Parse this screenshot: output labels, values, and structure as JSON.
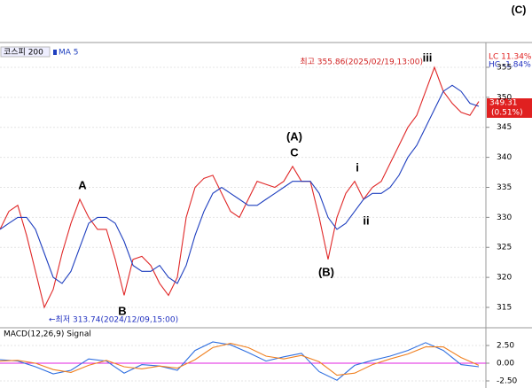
{
  "chart_data": [
    {
      "type": "line",
      "title": "코스피 200",
      "corner_label": "(C)",
      "categories": [
        null,
        null,
        null,
        null,
        null,
        null,
        null,
        null,
        null,
        null,
        null,
        null,
        null,
        null,
        null,
        null,
        null,
        null,
        null,
        null,
        null,
        null,
        null,
        null,
        null,
        null,
        null,
        null,
        null,
        null,
        null,
        null,
        null,
        null,
        null,
        null,
        null,
        null,
        null,
        null,
        null,
        null,
        null,
        null,
        null,
        null,
        null,
        null,
        null,
        null,
        null,
        null,
        null,
        null,
        null
      ],
      "series": [
        {
          "color": "#e02828",
          "values": [
            328,
            331,
            332,
            327,
            321,
            315,
            318,
            324,
            329,
            333,
            330,
            328,
            328,
            323,
            317,
            323,
            323.5,
            322,
            319,
            317,
            320,
            330,
            335,
            336.5,
            337,
            334,
            331,
            330,
            333,
            336,
            335.5,
            335,
            336,
            338.5,
            336,
            336,
            330,
            323,
            330,
            334,
            336,
            333,
            335,
            336,
            339,
            342,
            345,
            347,
            351,
            355,
            351,
            349,
            347.5,
            347,
            349.3
          ]
        },
        {
          "name": "MA 5",
          "color": "#1f3fbf",
          "values": [
            328,
            329,
            330,
            330,
            328,
            324,
            320,
            319,
            321,
            325,
            329,
            330,
            330,
            329,
            326,
            322,
            321,
            321,
            322,
            320,
            319,
            322,
            327,
            331,
            334,
            335,
            334,
            333,
            332,
            332,
            333,
            334,
            335,
            336,
            336,
            336,
            334,
            330,
            328,
            329,
            331,
            333,
            334,
            334,
            335,
            337,
            340,
            342,
            345,
            348,
            351,
            352,
            351,
            349,
            348.5
          ]
        }
      ],
      "ylim": [
        311.9,
        359.13
      ],
      "yticks": [
        315,
        320,
        325,
        330,
        335,
        340,
        345,
        350,
        355
      ],
      "grid": true,
      "annotations": [
        "A",
        "B",
        "C",
        "(A)",
        "(B)",
        "i",
        "ii",
        "iii",
        "최고 355.86(2025/02/19,13:00)",
        "←최저 313.74(2024/12/09,15:00)"
      ],
      "range_labels": [
        "LC  11.34%",
        "HC  -1.84%"
      ],
      "price_label": "349.31",
      "change_label": "(0.51%)"
    },
    {
      "type": "line",
      "title": "MACD(12,26,9) Signal",
      "categories": [
        null,
        null,
        null,
        null,
        null,
        null,
        null,
        null,
        null,
        null,
        null,
        null,
        null,
        null,
        null,
        null,
        null,
        null,
        null,
        null,
        null,
        null,
        null,
        null,
        null,
        null,
        null,
        null
      ],
      "series": [
        {
          "color": "#2f6fe0",
          "values": [
            0.5,
            0.3,
            -0.5,
            -1.5,
            -1.0,
            0.6,
            0.3,
            -1.4,
            -0.2,
            -0.4,
            -1.0,
            1.8,
            3.0,
            2.6,
            1.5,
            0.3,
            0.9,
            1.4,
            -1.2,
            -2.4,
            -0.3,
            0.4,
            1.0,
            1.8,
            2.9,
            1.8,
            -0.2,
            -0.5
          ]
        },
        {
          "color": "#f08020",
          "values": [
            0.3,
            0.4,
            0.0,
            -0.9,
            -1.3,
            -0.3,
            0.4,
            -0.5,
            -0.8,
            -0.4,
            -0.7,
            0.5,
            2.2,
            2.8,
            2.2,
            1.0,
            0.6,
            1.1,
            0.2,
            -1.7,
            -1.4,
            -0.2,
            0.6,
            1.3,
            2.3,
            2.3,
            0.8,
            -0.3
          ]
        }
      ],
      "ylim": [
        -3.5,
        4.75
      ],
      "yticks": [
        {
          "value": 2.5,
          "label": "2.50"
        },
        {
          "value": 0,
          "label": "0.00"
        },
        {
          "value": -2.5,
          "label": "-2.50"
        }
      ],
      "zero_color": "#e020e0",
      "grid": true
    }
  ]
}
